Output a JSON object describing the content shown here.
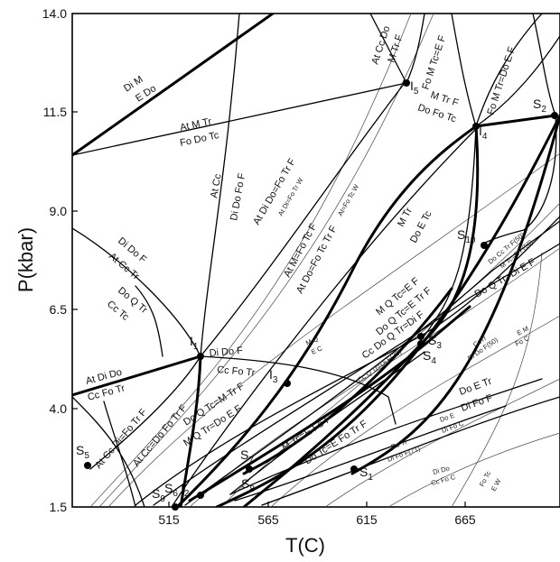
{
  "axes": {
    "xlabel": "T(C)",
    "ylabel": "P(kbar)",
    "x_ticks": [
      "515",
      "565",
      "615",
      "665"
    ],
    "y_ticks": [
      "14.0",
      "11.5",
      "9.0",
      "6.5",
      "4.0",
      "1.5"
    ]
  },
  "points": {
    "S1": "S",
    "S1n": "1",
    "S2": "S",
    "S2n": "2",
    "S3": "S",
    "S3n": "3",
    "S4": "S",
    "S4n": "4",
    "S5": "S",
    "S5n": "5",
    "S6": "S",
    "S6n": "6",
    "S7": "S",
    "S7n": "7",
    "S8": "S",
    "S8n": "8",
    "S9": "S",
    "S9n": "9",
    "S10": "S",
    "S10n": "10",
    "I1": "I",
    "I1n": "1",
    "I2": "I",
    "I2n": "2",
    "I3": "I",
    "I3n": "3",
    "I4": "I",
    "I4n": "4",
    "I5": "I",
    "I5n": "5"
  },
  "reactions": {
    "di_m_1": "Di M",
    "di_m_2": "E Do",
    "at_m_tr_1": "At M Tr",
    "at_m_tr_2": "Fo Do Tc",
    "at_cc_do": "At Cc Do",
    "m_tr_f_top": "M Tr F",
    "fo_m_tc": "Fo M Tc=E F",
    "fo_m_tr": "Fo M Tr=Do E F",
    "i5_1": "M Tr F",
    "i5_2": "Do Fo Tc",
    "at_cc_1": "At Cc",
    "at_cc_2": "Di Do Fo F",
    "at_di_do": "At Di Do=Fo Tr F",
    "at_di_fo_trw": "At Di=Fo Tr W",
    "at_fo_tcw": "At=Fo Tc W",
    "at_m_fo_tc": "At M=Fo Tc F",
    "at_do_fo_tc_tr": "At Do=Fo Tc Tr F",
    "m_tr_1": "M Tr",
    "m_tr_2": "Do E Tc",
    "do_cc_tr_f50": "Do Cc Tr F(50)",
    "m_tc_e_f50": "M Tc=E F(50)",
    "di_do_f": "Di Do F",
    "at_cc_tr": "At Cc Tr",
    "do_q_tr": "Do Q Tr",
    "cc_tc": "Cc Tc",
    "m_q_tc_ef": "M Q Tc=E F",
    "do_q_tc_etr": "Do Q Tc=E Tr F",
    "cc_do_q_tr": "Cc Do Q Tr=Di F",
    "do_q_tr_di_ef": "Do Q Tr=Di E F",
    "mq_ec_1": "M Q",
    "mq_ec_2": "E C",
    "cc_q_tr": "Cc Q Tr=Di F(75)",
    "cctr": "CcTr",
    "di_do_f50": "Di Do F(50)",
    "em_1": "E M",
    "em_2": "Fo C",
    "at_di_do_1": "At Di Do",
    "at_di_do_2": "Cc Fo Tr",
    "i1_1": "Di Do F",
    "i1_2": "Cc Fo Tr",
    "at_cc_di": "At Cc Di=Fo Tr F",
    "at_cc_do_fo": "At Cc=Do Fo Tr F",
    "do_q_tc_m": "Do Q Tc=M Tr F",
    "m_q_tr_do": "M Q Tr=Do E F",
    "m_tc_e_fo": "M Tc=E Fo F",
    "do_tc_e_fo": "Do Tc=E Fo Tr F",
    "do_e_tr": "Do E Tr",
    "di_fo_f": "Di Fo F",
    "do_e_s": "Do E",
    "di_fo_c_s": "Di Fo C",
    "do_tr_s": "Do Tr",
    "di_fo_f71": "Di Fo F(71)",
    "di_do_s": "Di Do",
    "cc_fo_c_s": "Cc Fo C",
    "fo_tc_s": "Fo Tc",
    "ew_s": "E W"
  }
}
